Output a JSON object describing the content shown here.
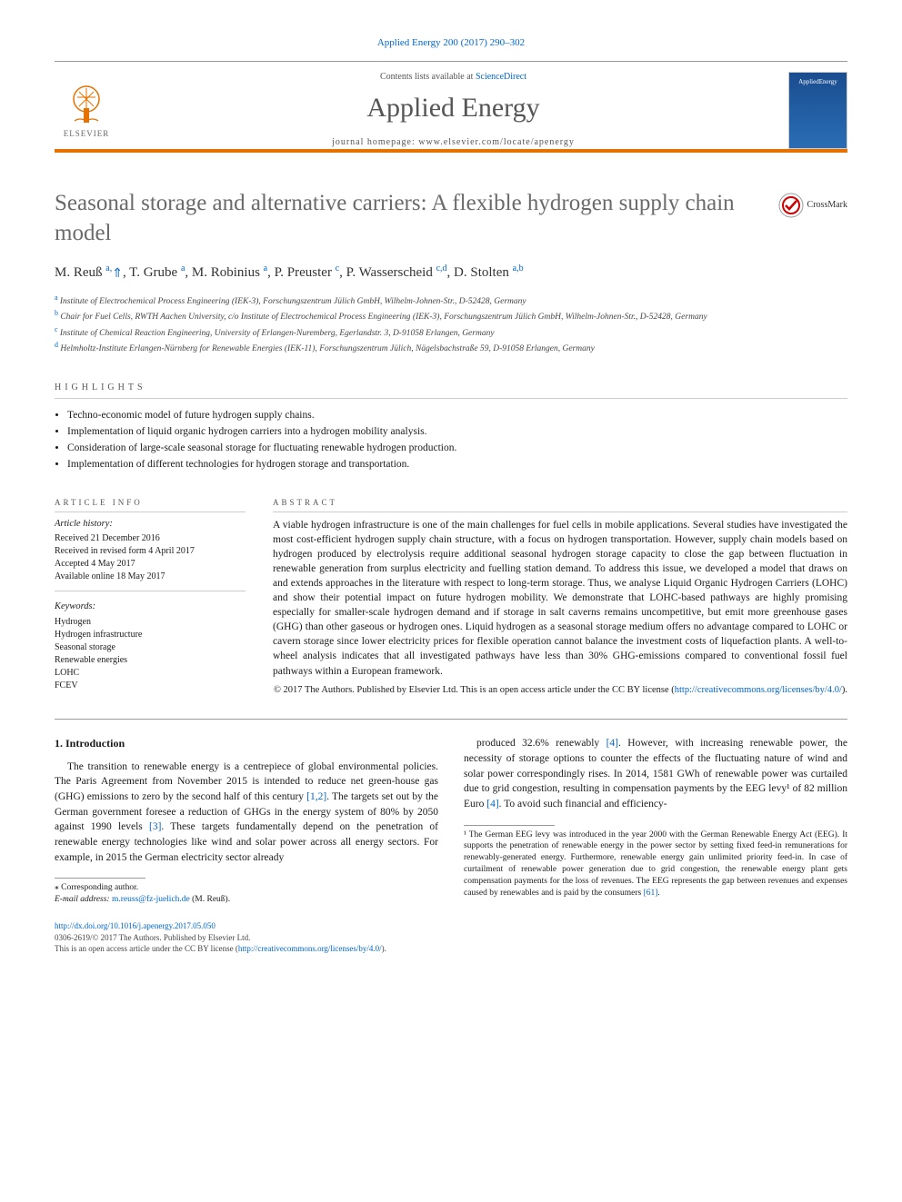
{
  "citation": {
    "text": "Applied Energy 200 (2017) 290–302"
  },
  "masthead": {
    "contents_prefix": "Contents lists available at ",
    "contents_link": "ScienceDirect",
    "journal_name": "Applied Energy",
    "homepage_prefix": "journal homepage: ",
    "homepage_url": "www.elsevier.com/locate/apenergy",
    "publisher": "ELSEVIER",
    "cover_label": "AppliedEnergy"
  },
  "title": "Seasonal storage and alternative carriers: A flexible hydrogen supply chain model",
  "crossmark": "CrossMark",
  "authors_html": "M. Reuß <sup>a,</sup>*, T. Grube <sup>a</sup>, M. Robinius <sup>a</sup>, P. Preuster <sup>c</sup>, P. Wasserscheid <sup>c,d</sup>, D. Stolten <sup>a,b</sup>",
  "affiliations": [
    {
      "sup": "a",
      "text": "Institute of Electrochemical Process Engineering (IEK-3), Forschungszentrum Jülich GmbH, Wilhelm-Johnen-Str., D-52428, Germany"
    },
    {
      "sup": "b",
      "text": "Chair for Fuel Cells, RWTH Aachen University, c/o Institute of Electrochemical Process Engineering (IEK-3), Forschungszentrum Jülich GmbH, Wilhelm-Johnen-Str., D-52428, Germany"
    },
    {
      "sup": "c",
      "text": "Institute of Chemical Reaction Engineering, University of Erlangen-Nuremberg, Egerlandstr. 3, D-91058 Erlangen, Germany"
    },
    {
      "sup": "d",
      "text": "Helmholtz-Institute Erlangen-Nürnberg for Renewable Energies (IEK-11), Forschungszentrum Jülich, Nägelsbachstraße 59, D-91058 Erlangen, Germany"
    }
  ],
  "highlights_label": "highlights",
  "highlights": [
    "Techno-economic model of future hydrogen supply chains.",
    "Implementation of liquid organic hydrogen carriers into a hydrogen mobility analysis.",
    "Consideration of large-scale seasonal storage for fluctuating renewable hydrogen production.",
    "Implementation of different technologies for hydrogen storage and transportation."
  ],
  "article_info_label": "article info",
  "history": {
    "label": "Article history:",
    "received": "Received 21 December 2016",
    "revised": "Received in revised form 4 April 2017",
    "accepted": "Accepted 4 May 2017",
    "online": "Available online 18 May 2017"
  },
  "keywords_label": "Keywords:",
  "keywords": [
    "Hydrogen",
    "Hydrogen infrastructure",
    "Seasonal storage",
    "Renewable energies",
    "LOHC",
    "FCEV"
  ],
  "abstract_label": "abstract",
  "abstract": "A viable hydrogen infrastructure is one of the main challenges for fuel cells in mobile applications. Several studies have investigated the most cost-efficient hydrogen supply chain structure, with a focus on hydrogen transportation. However, supply chain models based on hydrogen produced by electrolysis require additional seasonal hydrogen storage capacity to close the gap between fluctuation in renewable generation from surplus electricity and fuelling station demand. To address this issue, we developed a model that draws on and extends approaches in the literature with respect to long-term storage. Thus, we analyse Liquid Organic Hydrogen Carriers (LOHC) and show their potential impact on future hydrogen mobility. We demonstrate that LOHC-based pathways are highly promising especially for smaller-scale hydrogen demand and if storage in salt caverns remains uncompetitive, but emit more greenhouse gases (GHG) than other gaseous or hydrogen ones. Liquid hydrogen as a seasonal storage medium offers no advantage compared to LOHC or cavern storage since lower electricity prices for flexible operation cannot balance the investment costs of liquefaction plants. A well-to-wheel analysis indicates that all investigated pathways have less than 30% GHG-emissions compared to conventional fossil fuel pathways within a European framework.",
  "copyright": {
    "line": "© 2017 The Authors. Published by Elsevier Ltd. This is an open access article under the CC BY license (",
    "url_text": "http://creativecommons.org/licenses/by/4.0/",
    "close": ")."
  },
  "intro": {
    "heading": "1. Introduction",
    "col1": "The transition to renewable energy is a centrepiece of global environmental policies. The Paris Agreement from November 2015 is intended to reduce net green-house gas (GHG) emissions to zero by the second half of this century [1,2]. The targets set out by the German government foresee a reduction of GHGs in the energy system of 80% by 2050 against 1990 levels [3]. These targets fundamentally depend on the penetration of renewable energy technologies like wind and solar power across all energy sectors. For example, in 2015 the German electricity sector already",
    "col2": "produced 32.6% renewably [4]. However, with increasing renewable power, the necessity of storage options to counter the effects of the fluctuating nature of wind and solar power correspondingly rises. In 2014, 1581 GWh of renewable power was curtailed due to grid congestion, resulting in compensation payments by the EEG levy¹ of 82 million Euro [4]. To avoid such financial and efficiency-"
  },
  "corresponding": {
    "label": "⁎ Corresponding author.",
    "email_label": "E-mail address: ",
    "email": "m.reuss@fz-juelich.de",
    "email_name": " (M. Reuß)."
  },
  "footnote1": "¹ The German EEG levy was introduced in the year 2000 with the German Renewable Energy Act (EEG). It supports the penetration of renewable energy in the power sector by setting fixed feed-in remunerations for renewably-generated energy. Furthermore, renewable energy gain unlimited priority feed-in. In case of curtailment of renewable power generation due to grid congestion, the renewable energy plant gets compensation payments for the loss of revenues. The EEG represents the gap between revenues and expenses caused by renewables and is paid by the consumers [61].",
  "footer": {
    "doi": "http://dx.doi.org/10.1016/j.apenergy.2017.05.050",
    "issn_line": "0306-2619/© 2017 The Authors. Published by Elsevier Ltd.",
    "license_line": "This is an open access article under the CC BY license (",
    "license_url": "http://creativecommons.org/licenses/by/4.0/",
    "license_close": ")."
  },
  "colors": {
    "link": "#0066cc",
    "orange_rule": "#e57200",
    "gray_text": "#6a6a6a"
  }
}
